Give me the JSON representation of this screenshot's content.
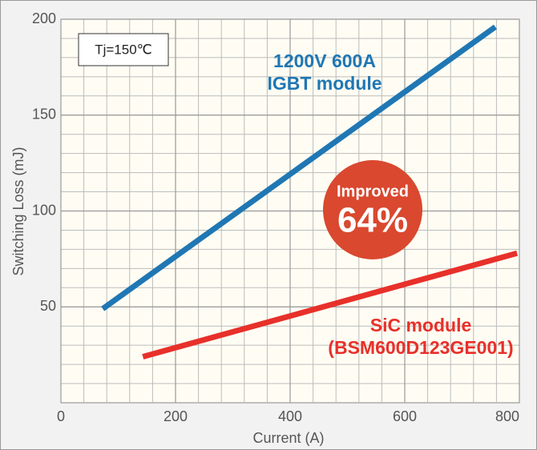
{
  "chart_data": {
    "type": "line",
    "xlabel": "Current (A)",
    "ylabel": "Switching Loss (mJ)",
    "xlim": [
      0,
      800
    ],
    "ylim": [
      0,
      200
    ],
    "xticks": [
      0,
      200,
      400,
      600,
      800
    ],
    "yticks": [
      50,
      100,
      150,
      200
    ],
    "grid": true,
    "xminor": 40,
    "yminor": 10,
    "series": [
      {
        "label_lines": [
          "1200V 600A",
          "IGBT module"
        ],
        "color": "#1f77b4",
        "x": [
          73,
          758
        ],
        "values": [
          49,
          196
        ]
      },
      {
        "label_lines": [
          "SiC module",
          "(BSM600D123GE001)"
        ],
        "color": "#e8302a",
        "x": [
          143,
          796
        ],
        "values": [
          24,
          78
        ]
      }
    ],
    "annotations": {
      "condition": "Tj=150℃",
      "badge_top": "Improved",
      "badge_value": "64%"
    }
  }
}
